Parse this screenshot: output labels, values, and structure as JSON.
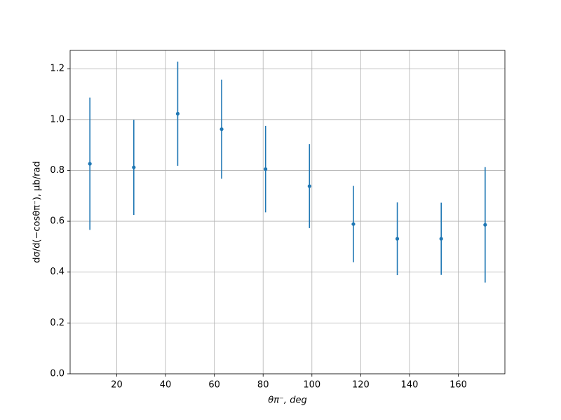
{
  "chart_data": {
    "type": "errorbar",
    "xlabel": "θπ⁻, deg",
    "ylabel": "dσ/d(−cosθπ⁻), μb/rad",
    "x": [
      9,
      27,
      45,
      63,
      81,
      99,
      117,
      135,
      153,
      171
    ],
    "values": [
      0.826,
      0.812,
      1.023,
      0.962,
      0.805,
      0.738,
      0.589,
      0.531,
      0.531,
      0.586
    ],
    "errors": [
      0.26,
      0.187,
      0.205,
      0.195,
      0.17,
      0.165,
      0.15,
      0.143,
      0.142,
      0.227
    ],
    "color": "#1f77b4",
    "xlim": [
      0.9,
      179.1
    ],
    "ylim": [
      0,
      1.272
    ],
    "xticks": [
      20,
      40,
      60,
      80,
      100,
      120,
      140,
      160
    ],
    "yticks": [
      {
        "value": 0,
        "label": "0.0"
      },
      0.2,
      0.4,
      0.6,
      0.8,
      {
        "value": 1,
        "label": "1.0"
      },
      1.2
    ],
    "grid": true
  }
}
